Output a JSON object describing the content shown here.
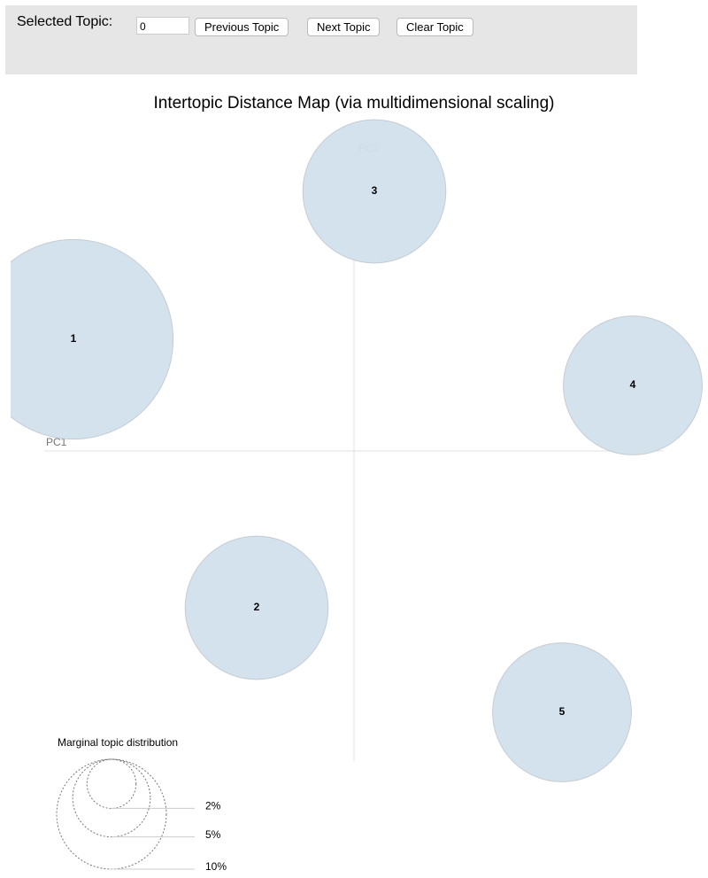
{
  "controls": {
    "label": "Selected Topic:",
    "input_value": "0",
    "buttons": [
      "Previous Topic",
      "Next Topic",
      "Clear Topic"
    ]
  },
  "chart_data": {
    "type": "bubble",
    "title": "Intertopic Distance Map (via multidimensional scaling)",
    "x_label": "PC1",
    "y_label": "PC2",
    "xlim": [
      -0.35,
      0.35
    ],
    "ylim": [
      -0.35,
      0.35
    ],
    "labels": [
      "1",
      "2",
      "3",
      "4",
      "5"
    ],
    "x": [
      -0.317,
      -0.11,
      0.023,
      0.315,
      0.235
    ],
    "y": [
      0.126,
      -0.177,
      0.293,
      0.074,
      -0.295
    ],
    "sizes": [
      33,
      17,
      17,
      16,
      16
    ],
    "color": "#d2e0ec",
    "size_legend": {
      "title": "Marginal topic distribution",
      "items": [
        {
          "value": 2,
          "label": "2%"
        },
        {
          "value": 5,
          "label": "5%"
        },
        {
          "value": 10,
          "label": "10%"
        }
      ]
    }
  }
}
